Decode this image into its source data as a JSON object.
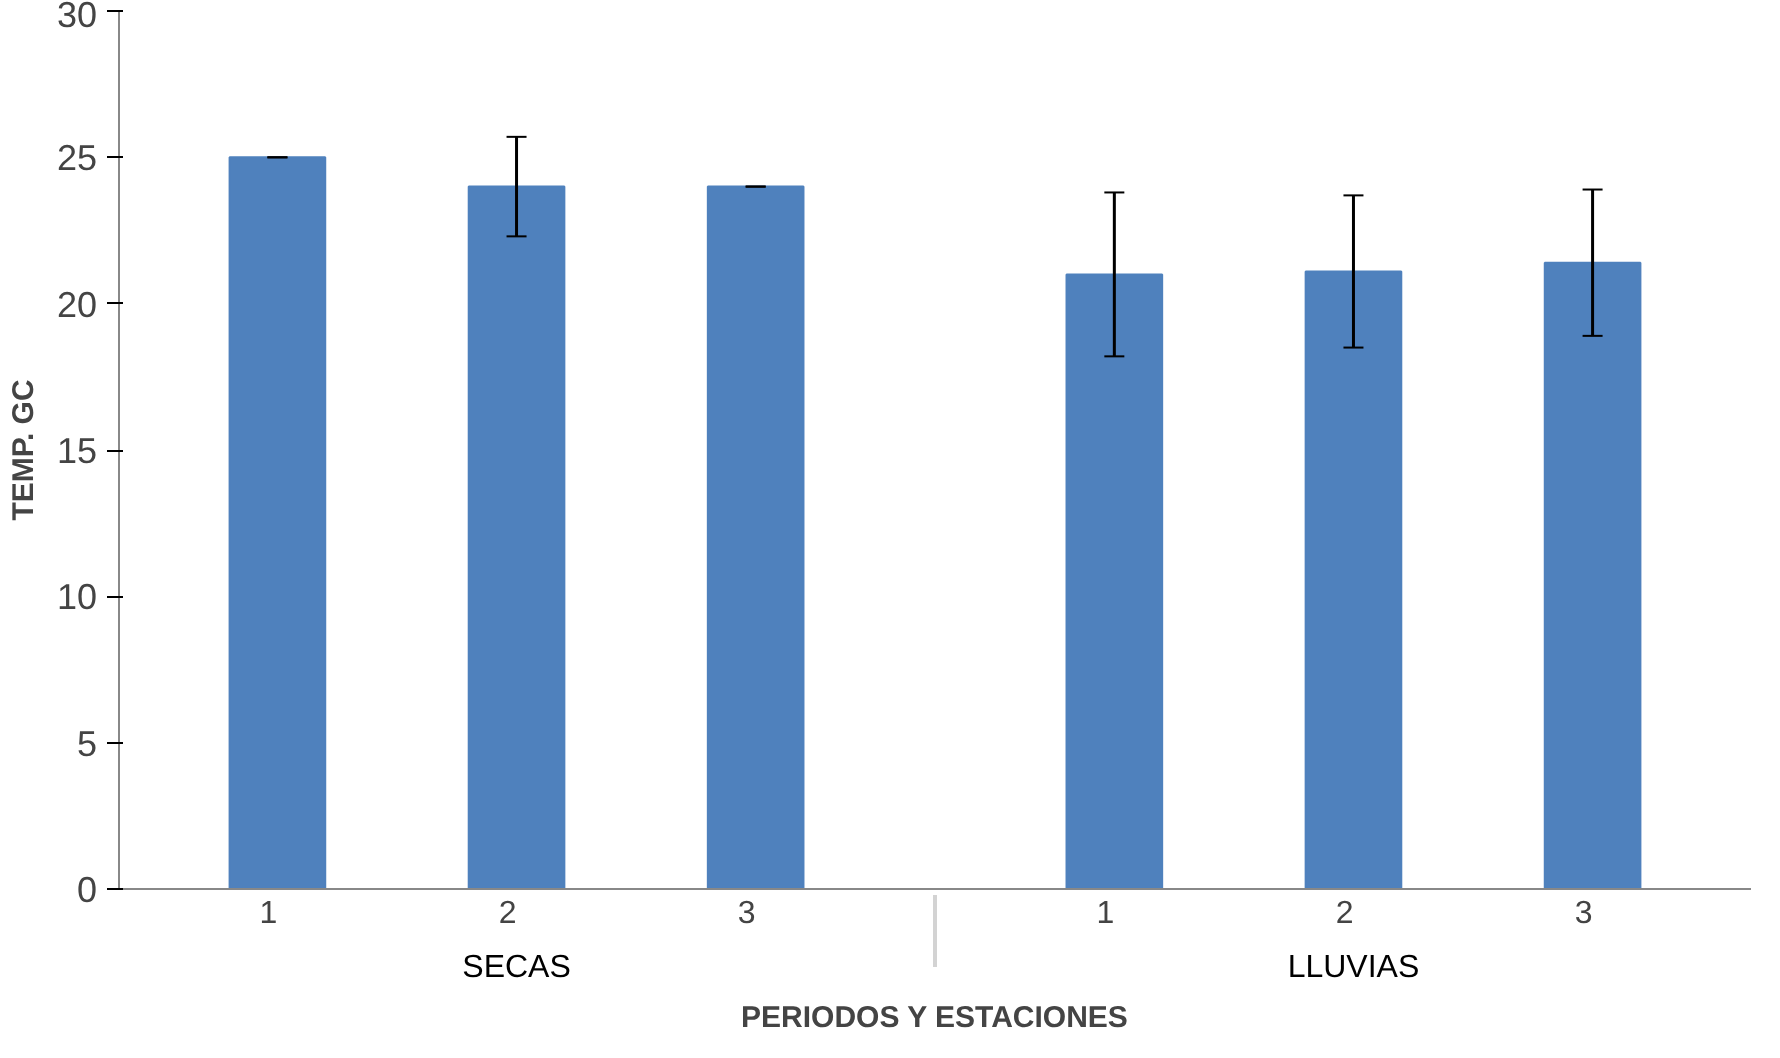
{
  "chart_data": {
    "type": "bar",
    "xlabel": "PERIODOS Y ESTACIONES",
    "ylabel": "TEMP. GC",
    "categories": [
      "1",
      "2",
      "3",
      "1",
      "2",
      "3"
    ],
    "values": [
      25,
      24,
      24,
      21,
      21.1,
      21.4
    ],
    "errors": [
      0,
      1.7,
      0,
      2.8,
      2.6,
      2.5
    ],
    "color": "#4f81bd",
    "annotations": [
      "SECAS",
      "LLUVIAS"
    ],
    "ylim": [
      0,
      30
    ],
    "yticks": [
      0,
      5,
      10,
      15,
      20,
      25,
      30
    ],
    "grid": false
  }
}
